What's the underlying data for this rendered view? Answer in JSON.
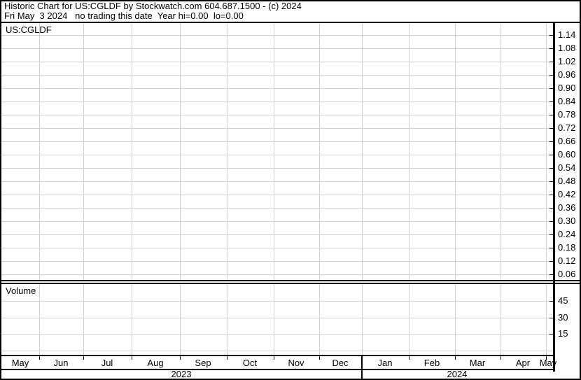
{
  "header": {
    "line1": "Historic Chart for US:CGLDF by Stockwatch.com 604.687.1500 - (c) 2024",
    "line2": "Fri May  3 2024   no trading this date  Year hi=0.00  lo=0.00"
  },
  "price_panel": {
    "symbol_label": "US:CGLDF",
    "axis_tick_labels": [
      "1.14",
      "1.08",
      "1.02",
      "0.96",
      "0.90",
      "0.84",
      "0.78",
      "0.72",
      "0.66",
      "0.60",
      "0.54",
      "0.48",
      "0.42",
      "0.36",
      "0.30",
      "0.24",
      "0.18",
      "0.12",
      "0.06"
    ]
  },
  "volume_panel": {
    "label": "Volume",
    "axis_tick_labels": [
      "45",
      "30",
      "15"
    ]
  },
  "x_axis": {
    "month_labels": [
      "May",
      "Jun",
      "Jul",
      "Aug",
      "Sep",
      "Oct",
      "Nov",
      "Dec",
      "Jan",
      "Feb",
      "Mar",
      "Apr",
      "May"
    ],
    "year_labels": [
      "2023",
      "2024"
    ]
  },
  "colors": {
    "background": "#ffffff",
    "border": "#000000",
    "text": "#000000",
    "gridline": "#d0d0d0"
  },
  "chart_data": {
    "type": "line",
    "title": "Historic Chart for US:CGLDF",
    "subtitle": "Fri May 3 2024 - no trading this date",
    "year_hi": 0.0,
    "year_lo": 0.0,
    "x_range": [
      "May 2023",
      "May 2024"
    ],
    "x_tick_labels": [
      "May",
      "Jun",
      "Jul",
      "Aug",
      "Sep",
      "Oct",
      "Nov",
      "Dec",
      "Jan",
      "Feb",
      "Mar",
      "Apr",
      "May"
    ],
    "series": [
      {
        "name": "US:CGLDF price",
        "values": []
      },
      {
        "name": "Volume",
        "values": []
      }
    ],
    "price_axis": {
      "ticks": [
        1.14,
        1.08,
        1.02,
        0.96,
        0.9,
        0.84,
        0.78,
        0.72,
        0.66,
        0.6,
        0.54,
        0.48,
        0.42,
        0.36,
        0.3,
        0.24,
        0.18,
        0.12,
        0.06
      ],
      "gridlines": true
    },
    "volume_axis": {
      "ticks": [
        45,
        30,
        15
      ],
      "gridlines": true
    },
    "legend_position": "none",
    "note": "Chart area is empty: no trades plotted for this period"
  }
}
